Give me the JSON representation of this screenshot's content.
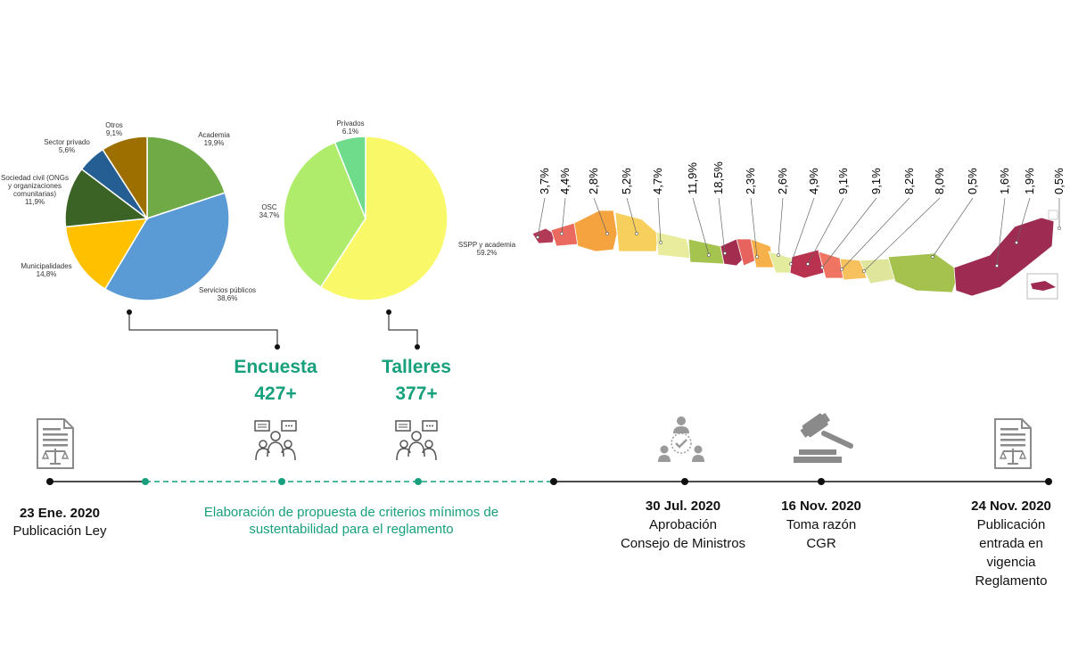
{
  "chart_data": [
    {
      "type": "pie",
      "title": "",
      "slices": [
        {
          "label": "Academia",
          "value": 19.9,
          "display": "19,9%",
          "color": "#6faa47"
        },
        {
          "label": "Servicios públicos",
          "value": 38.6,
          "display": "38,6%",
          "color": "#5b9bd5"
        },
        {
          "label": "Municipalidades",
          "value": 14.8,
          "display": "14,8%",
          "color": "#ffc000"
        },
        {
          "label": "Sociedad civil (ONGs y organizaciones comunitarias)",
          "label_lines": [
            "Sociedad civil (ONGs",
            "y organizaciones",
            "comunitarias)"
          ],
          "value": 11.9,
          "display": "11,9%",
          "color": "#3c6326"
        },
        {
          "label": "Sector privado",
          "value": 5.6,
          "display": "5,6%",
          "color": "#245e92"
        },
        {
          "label": "Otros",
          "value": 9.1,
          "display": "9,1%",
          "color": "#9c6f00"
        }
      ]
    },
    {
      "type": "pie",
      "title": "",
      "slices": [
        {
          "label": "SSPP y academia",
          "value": 59.2,
          "display": "59.2%",
          "color": "#f8f869"
        },
        {
          "label": "OSC",
          "value": 34.7,
          "display": "34.7%",
          "color": "#b0ec6c"
        },
        {
          "label": "Privados",
          "value": 6.1,
          "display": "6.1%",
          "color": "#6fdc8c"
        }
      ]
    },
    {
      "type": "choropleth",
      "title": "",
      "regions": [
        {
          "value": "3,7%",
          "color": "#b23a57"
        },
        {
          "value": "4,4%",
          "color": "#ea6a5f"
        },
        {
          "value": "2,8%",
          "color": "#f5a33f"
        },
        {
          "value": "5,2%",
          "color": "#f7cf5c"
        },
        {
          "value": "4,7%",
          "color": "#e9ec9c"
        },
        {
          "value": "11,9%",
          "color": "#a5c44f"
        },
        {
          "value": "18,5%",
          "color": "#a22d4e"
        },
        {
          "value": "2,3%",
          "color": "#e7645e"
        },
        {
          "value": "2,6%",
          "color": "#f7b14a"
        },
        {
          "value": "4,9%",
          "color": "#e3eb9d"
        },
        {
          "value": "9,1%",
          "color": "#b9324f"
        },
        {
          "value": "9,1%",
          "color": "#ef7462"
        },
        {
          "value": "8,2%",
          "color": "#f7c15e"
        },
        {
          "value": "8,0%",
          "color": "#dfe69b"
        },
        {
          "value": "0,5%",
          "color": "#a4c24d"
        },
        {
          "value": "1,6%",
          "color": "#9e2c52"
        },
        {
          "value": "1,9%",
          "color": "#9e2c52"
        },
        {
          "value": "0,5%",
          "color": "#9e2c52"
        }
      ]
    }
  ],
  "participation": {
    "encuesta": {
      "title": "Encuesta",
      "count": "427+"
    },
    "talleres": {
      "title": "Talleres",
      "count": "377+"
    }
  },
  "timeline": {
    "accent": "#17a07c",
    "events": [
      {
        "date": "23 Ene. 2020",
        "lines": [
          "Publicación Ley"
        ],
        "icon": "law-document-icon"
      },
      {
        "date": "30 Jul. 2020",
        "lines": [
          "Aprobación",
          "Consejo de Ministros"
        ],
        "icon": "approval-meeting-icon"
      },
      {
        "date": "16 Nov. 2020",
        "lines": [
          "Toma razón",
          "CGR"
        ],
        "icon": "gavel-icon"
      },
      {
        "date": "24 Nov. 2020",
        "lines": [
          "Publicación",
          "entrada en",
          "vigencia",
          "Reglamento"
        ],
        "icon": "law-document-icon"
      }
    ],
    "process_lines": [
      "Elaboración de propuesta de criterios mínimos de",
      "sustentabilidad para el reglamento"
    ]
  }
}
